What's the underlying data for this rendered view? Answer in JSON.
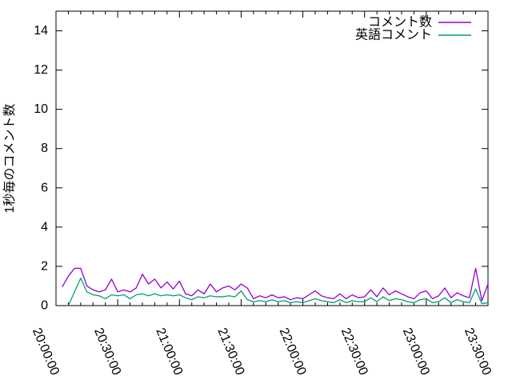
{
  "chart_data": {
    "type": "line",
    "title": "",
    "xlabel": "",
    "ylabel": "1秒毎のコメント数",
    "ylim": [
      0,
      15
    ],
    "y_ticks": [
      0,
      2,
      4,
      6,
      8,
      10,
      12,
      14
    ],
    "x_ticks": [
      "20:00:00",
      "20:30:00",
      "21:00:00",
      "21:30:00",
      "22:00:00",
      "22:30:00",
      "23:00:00",
      "23:30:00"
    ],
    "x_origin": "20:00:00",
    "x_major_interval_minutes": 30,
    "x_minor_divisions": 5,
    "grid": false,
    "legend_position": "top-right-inside",
    "background_color": "#ffffff",
    "axis_color": "#000000",
    "series": [
      {
        "name": "コメント数",
        "color": "#9400d3",
        "x_start_minute": 3,
        "x_step_minutes": 3,
        "values": [
          0.95,
          1.5,
          1.9,
          1.9,
          1.0,
          0.8,
          0.7,
          0.8,
          1.35,
          0.7,
          0.8,
          0.7,
          0.9,
          1.6,
          1.1,
          1.35,
          0.9,
          1.2,
          0.85,
          1.25,
          0.6,
          0.5,
          0.8,
          0.6,
          1.1,
          0.7,
          0.9,
          1.0,
          0.8,
          1.1,
          0.9,
          0.35,
          0.5,
          0.4,
          0.55,
          0.4,
          0.45,
          0.3,
          0.4,
          0.35,
          0.55,
          0.75,
          0.5,
          0.4,
          0.35,
          0.6,
          0.35,
          0.55,
          0.4,
          0.45,
          0.8,
          0.45,
          0.9,
          0.55,
          0.75,
          0.6,
          0.45,
          0.35,
          0.65,
          0.75,
          0.35,
          0.5,
          0.9,
          0.4,
          0.65,
          0.5,
          0.4,
          1.9,
          0.25,
          1.1
        ]
      },
      {
        "name": "英語コメント",
        "color": "#009e73",
        "x_start_minute": 6,
        "x_step_minutes": 3,
        "values": [
          0.0,
          0.7,
          1.4,
          0.7,
          0.55,
          0.5,
          0.35,
          0.55,
          0.5,
          0.55,
          0.35,
          0.55,
          0.6,
          0.5,
          0.6,
          0.5,
          0.55,
          0.5,
          0.55,
          0.4,
          0.3,
          0.45,
          0.4,
          0.5,
          0.45,
          0.45,
          0.5,
          0.45,
          0.75,
          0.3,
          0.2,
          0.25,
          0.2,
          0.3,
          0.2,
          0.25,
          0.15,
          0.2,
          0.15,
          0.25,
          0.35,
          0.25,
          0.2,
          0.15,
          0.3,
          0.15,
          0.25,
          0.2,
          0.2,
          0.4,
          0.2,
          0.45,
          0.25,
          0.35,
          0.3,
          0.2,
          0.15,
          0.3,
          0.35,
          0.15,
          0.2,
          0.4,
          0.15,
          0.3,
          0.2,
          0.15,
          0.85,
          0.1,
          0.15
        ]
      }
    ]
  }
}
